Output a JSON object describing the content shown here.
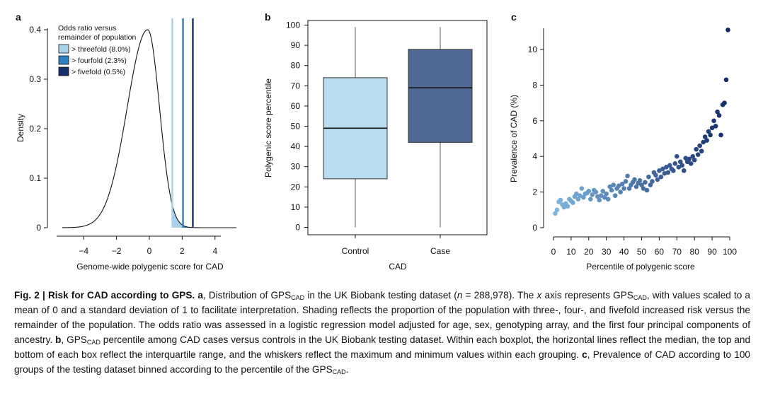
{
  "panels": {
    "a": {
      "label": "a",
      "xlabel": "Genome-wide polygenic score for CAD",
      "ylabel": "Density",
      "legend_title_line1": "Odds ratio versus",
      "legend_title_line2": "remainder of population",
      "legend": [
        {
          "label": "> threefold (8.0%)",
          "color": "#a9d1ea"
        },
        {
          "label": "> fourfold (2.3%)",
          "color": "#2f7fc0"
        },
        {
          "label": "> fivefold (0.5%)",
          "color": "#14306b"
        }
      ]
    },
    "b": {
      "label": "b",
      "xlabel": "CAD",
      "ylabel": "Polygenic score percentile"
    },
    "c": {
      "label": "c",
      "xlabel": "Percentile of polygenic score",
      "ylabel": "Prevalence of CAD (%)"
    }
  },
  "chart_data": [
    {
      "type": "area",
      "panel": "a",
      "xlabel": "Genome-wide polygenic score for CAD",
      "ylabel": "Density",
      "xlim": [
        -5.3,
        5.3
      ],
      "ylim": [
        0,
        0.41
      ],
      "xticks": [
        -4,
        -2,
        0,
        2,
        4
      ],
      "xtick_labels": [
        "−4",
        "−2",
        "0",
        "2",
        "4"
      ],
      "yticks": [
        0,
        0.1,
        0.2,
        0.3,
        0.4
      ],
      "ytick_labels": [
        "0",
        "0.1",
        "0.2",
        "0.3",
        "0.4"
      ],
      "curve": {
        "shape": "left-skewed density",
        "peak_x": -0.1,
        "peak_y": 0.4
      },
      "thresholds": [
        {
          "x": 1.4,
          "label": "> threefold (8.0%)",
          "color": "#a9d1ea"
        },
        {
          "x": 2.05,
          "label": "> fourfold (2.3%)",
          "color": "#2f7fc0"
        },
        {
          "x": 2.65,
          "label": "> fivefold (0.5%)",
          "color": "#14306b"
        }
      ]
    },
    {
      "type": "box",
      "panel": "b",
      "xlabel": "CAD",
      "ylabel": "Polygenic score percentile",
      "categories": [
        "Control",
        "Case"
      ],
      "ylim": [
        0,
        100
      ],
      "yticks": [
        0,
        10,
        20,
        30,
        40,
        50,
        60,
        70,
        80,
        90,
        100
      ],
      "boxes": [
        {
          "name": "Control",
          "min": 0,
          "q1": 24,
          "median": 49,
          "q3": 74,
          "max": 99,
          "color": "#b9dcee"
        },
        {
          "name": "Case",
          "min": 0,
          "q1": 42,
          "median": 69,
          "q3": 88,
          "max": 99,
          "color": "#4e6a95"
        }
      ]
    },
    {
      "type": "scatter",
      "panel": "c",
      "xlabel": "Percentile of polygenic score",
      "ylabel": "Prevalence of CAD (%)",
      "xlim": [
        -3,
        102
      ],
      "ylim": [
        -0.3,
        11.5
      ],
      "xticks": [
        0,
        10,
        20,
        30,
        40,
        50,
        60,
        70,
        80,
        90,
        100
      ],
      "yticks": [
        0,
        2,
        4,
        6,
        8,
        10
      ],
      "x": [
        1,
        2,
        3,
        4,
        5,
        6,
        7,
        8,
        9,
        10,
        11,
        12,
        13,
        14,
        15,
        16,
        17,
        18,
        19,
        20,
        21,
        22,
        23,
        24,
        25,
        26,
        27,
        28,
        29,
        30,
        31,
        32,
        33,
        34,
        35,
        36,
        37,
        38,
        39,
        40,
        41,
        42,
        43,
        44,
        45,
        46,
        47,
        48,
        49,
        50,
        51,
        52,
        53,
        54,
        55,
        56,
        57,
        58,
        59,
        60,
        61,
        62,
        63,
        64,
        65,
        66,
        67,
        68,
        69,
        70,
        71,
        72,
        73,
        74,
        75,
        76,
        77,
        78,
        79,
        80,
        81,
        82,
        83,
        84,
        85,
        86,
        87,
        88,
        89,
        90,
        91,
        92,
        93,
        94,
        95,
        96,
        97,
        98,
        99,
        100
      ],
      "y": [
        0.8,
        1.0,
        1.45,
        1.55,
        1.3,
        1.15,
        1.35,
        1.2,
        1.6,
        1.5,
        1.4,
        1.75,
        1.9,
        1.6,
        1.8,
        2.2,
        1.7,
        1.9,
        1.95,
        2.05,
        1.6,
        1.85,
        2.1,
        2.0,
        1.75,
        1.55,
        1.8,
        2.05,
        1.7,
        1.9,
        1.6,
        2.3,
        2.1,
        2.4,
        1.8,
        2.2,
        2.35,
        2.0,
        2.45,
        2.2,
        2.6,
        2.9,
        2.2,
        2.4,
        2.55,
        2.7,
        2.3,
        2.5,
        2.65,
        2.4,
        2.2,
        2.55,
        2.1,
        2.85,
        2.4,
        2.6,
        3.1,
        2.95,
        2.7,
        3.2,
        2.85,
        3.3,
        3.05,
        3.4,
        3.1,
        3.5,
        3.3,
        3.2,
        3.6,
        4.0,
        3.4,
        3.7,
        3.5,
        3.2,
        3.9,
        3.7,
        3.85,
        3.6,
        4.0,
        3.8,
        4.4,
        4.1,
        4.6,
        4.3,
        4.8,
        5.1,
        4.9,
        5.4,
        5.2,
        5.6,
        6.0,
        5.7,
        6.5,
        6.3,
        5.2,
        6.9,
        7.0,
        8.3,
        11.1,
        null
      ]
    }
  ],
  "caption": {
    "fig_label": "Fig. 2 | Risk for CAD according to GPS.",
    "a_label": "a",
    "t1": ", Distribution of GPS",
    "sub": "CAD",
    "t2": " in the UK Biobank testing dataset (",
    "n_label": "n",
    "t3": " = 288,978). The ",
    "x_label": "x",
    "t4": " axis represents GPS",
    "t5": ", with values scaled to a mean of 0 and a standard deviation of 1 to facilitate interpretation. Shading reflects the proportion of the population with three-, four-, and fivefold increased risk versus the remainder of the population. The odds ratio was assessed in a logistic regression model adjusted for age, sex, genotyping array, and the first four principal components of ancestry. ",
    "b_label": "b",
    "t6": ", GPS",
    "t7": " percentile among CAD cases versus controls in the UK Biobank testing dataset. Within each boxplot, the horizontal lines reflect the median, the top and bottom of each box reflect the interquartile range, and the whiskers reflect the maximum and minimum values within each grouping. ",
    "c_label": "c",
    "t8": ", Prevalence of CAD according to 100 groups of the testing dataset binned according to the percentile of the GPS",
    "t9": "."
  }
}
